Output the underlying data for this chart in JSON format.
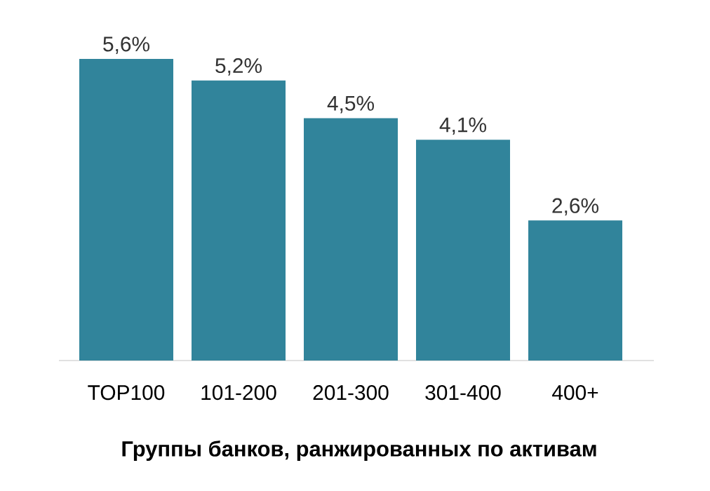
{
  "chart_data": {
    "type": "bar",
    "xlabel": "Группы банков, ранжированных по активам",
    "categories": [
      "TOP100",
      "101-200",
      "201-300",
      "301-400",
      "400+"
    ],
    "values": [
      5.6,
      5.2,
      4.5,
      4.1,
      2.6
    ],
    "value_labels": [
      "5,6%",
      "5,2%",
      "4,5%",
      "4,1%",
      "2,6%"
    ],
    "color": "#31849b"
  }
}
